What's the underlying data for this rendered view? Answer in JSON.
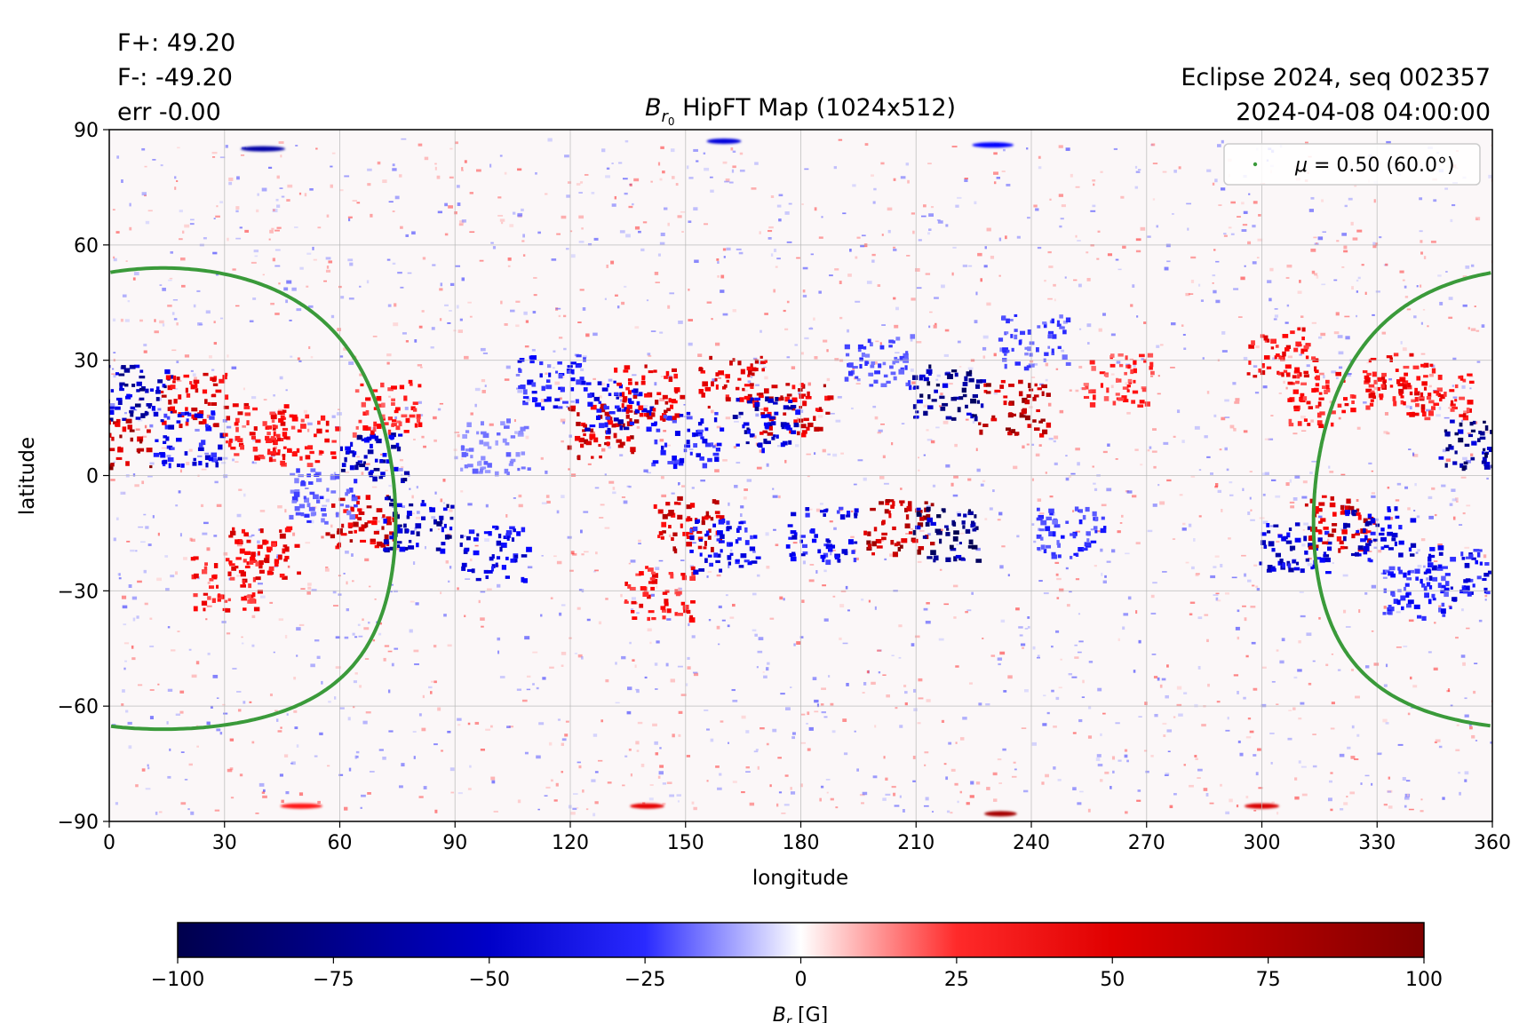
{
  "header": {
    "flux_pos": "F+: 49.20",
    "flux_neg": "F-: -49.20",
    "flux_err": "err -0.00",
    "dataset": "Eclipse 2024, seq 002357",
    "datetime": "2024-04-08 04:00:00"
  },
  "chart_data": {
    "type": "heatmap",
    "title": "HipFT Map (1024x512)",
    "title_symbol": "B",
    "title_subscript": "r",
    "title_subsubscript": "0",
    "xlabel": "longitude",
    "ylabel": "latitude",
    "xlim": [
      0,
      360
    ],
    "ylim": [
      -90,
      90
    ],
    "xticks": [
      0,
      30,
      60,
      90,
      120,
      150,
      180,
      210,
      240,
      270,
      300,
      330,
      360
    ],
    "yticks": [
      90,
      60,
      30,
      0,
      -30,
      -60,
      -90
    ],
    "ytick_labels": [
      "90",
      "60",
      "30",
      "0",
      "−30",
      "−60",
      "−90"
    ],
    "grid": true,
    "legend": {
      "label": "μ = 0.50 (60.0°)",
      "symbol": "μ",
      "rest": " = 0.50 (60.0°)",
      "placement": "top-right",
      "color": "#3a9a3a"
    },
    "colorbar": {
      "label": "B",
      "label_subscript": "r",
      "label_unit": "[G]",
      "range": [
        -100,
        100
      ],
      "ticks": [
        -100,
        -75,
        -50,
        -25,
        0,
        25,
        50,
        75,
        100
      ],
      "tick_labels": [
        "−100",
        "−75",
        "−50",
        "−25",
        "0",
        "25",
        "50",
        "75",
        "100"
      ],
      "colormap": "seismic",
      "colors": {
        "negative_max": "#00004d",
        "negative": "#0000ff",
        "zero": "#ffffff",
        "positive": "#ff0000",
        "positive_max": "#800000"
      }
    },
    "mu_contour": {
      "mu": 0.5,
      "angle_deg": 60.0,
      "disk_center_lon": 14,
      "disk_center_lat": -6
    },
    "active_regions": [
      {
        "lon": 7,
        "lat": 22,
        "value": -80
      },
      {
        "lon": 2,
        "lat": 8,
        "value": 90
      },
      {
        "lon": 22,
        "lat": 20,
        "value": 70
      },
      {
        "lon": 20,
        "lat": 10,
        "value": -60
      },
      {
        "lon": 38,
        "lat": 12,
        "value": 60
      },
      {
        "lon": 50,
        "lat": 10,
        "value": 55
      },
      {
        "lon": 68,
        "lat": 6,
        "value": -80
      },
      {
        "lon": 72,
        "lat": 18,
        "value": 50
      },
      {
        "lon": 40,
        "lat": -20,
        "value": 65
      },
      {
        "lon": 30,
        "lat": -28,
        "value": 55
      },
      {
        "lon": 65,
        "lat": -12,
        "value": 75
      },
      {
        "lon": 80,
        "lat": -12,
        "value": -80
      },
      {
        "lon": 55,
        "lat": -5,
        "value": -40
      },
      {
        "lon": 100,
        "lat": -20,
        "value": -65
      },
      {
        "lon": 115,
        "lat": 25,
        "value": -55
      },
      {
        "lon": 128,
        "lat": 12,
        "value": 80
      },
      {
        "lon": 132,
        "lat": 18,
        "value": -65
      },
      {
        "lon": 140,
        "lat": 22,
        "value": 70
      },
      {
        "lon": 150,
        "lat": 10,
        "value": -55
      },
      {
        "lon": 150,
        "lat": -12,
        "value": 75
      },
      {
        "lon": 143,
        "lat": -30,
        "value": 55
      },
      {
        "lon": 160,
        "lat": -18,
        "value": -60
      },
      {
        "lon": 162,
        "lat": 25,
        "value": 70
      },
      {
        "lon": 178,
        "lat": 18,
        "value": 75
      },
      {
        "lon": 170,
        "lat": 14,
        "value": -75
      },
      {
        "lon": 185,
        "lat": -15,
        "value": -60
      },
      {
        "lon": 205,
        "lat": -13,
        "value": 90
      },
      {
        "lon": 218,
        "lat": -15,
        "value": -95
      },
      {
        "lon": 218,
        "lat": 22,
        "value": -90
      },
      {
        "lon": 235,
        "lat": 18,
        "value": 90
      },
      {
        "lon": 250,
        "lat": -15,
        "value": -45
      },
      {
        "lon": 240,
        "lat": 35,
        "value": -40
      },
      {
        "lon": 262,
        "lat": 25,
        "value": 45
      },
      {
        "lon": 305,
        "lat": 32,
        "value": 60
      },
      {
        "lon": 315,
        "lat": 20,
        "value": 55
      },
      {
        "lon": 308,
        "lat": -18,
        "value": -70
      },
      {
        "lon": 320,
        "lat": -12,
        "value": 75
      },
      {
        "lon": 330,
        "lat": -15,
        "value": -70
      },
      {
        "lon": 335,
        "lat": 25,
        "value": 60
      },
      {
        "lon": 345,
        "lat": 22,
        "value": 55
      },
      {
        "lon": 355,
        "lat": 8,
        "value": -90
      },
      {
        "lon": 350,
        "lat": -25,
        "value": -60
      },
      {
        "lon": 340,
        "lat": -30,
        "value": -50
      },
      {
        "lon": 100,
        "lat": 8,
        "value": -30
      },
      {
        "lon": 200,
        "lat": 30,
        "value": -40
      }
    ],
    "polar_bands": [
      {
        "lon": 40,
        "lat": 85,
        "value": -75
      },
      {
        "lon": 160,
        "lat": 87,
        "value": -60
      },
      {
        "lon": 230,
        "lat": 86,
        "value": -50
      },
      {
        "lon": 140,
        "lat": -86,
        "value": 60
      },
      {
        "lon": 232,
        "lat": -88,
        "value": 85
      },
      {
        "lon": 300,
        "lat": -86,
        "value": 65
      },
      {
        "lon": 50,
        "lat": -86,
        "value": 45
      }
    ]
  }
}
